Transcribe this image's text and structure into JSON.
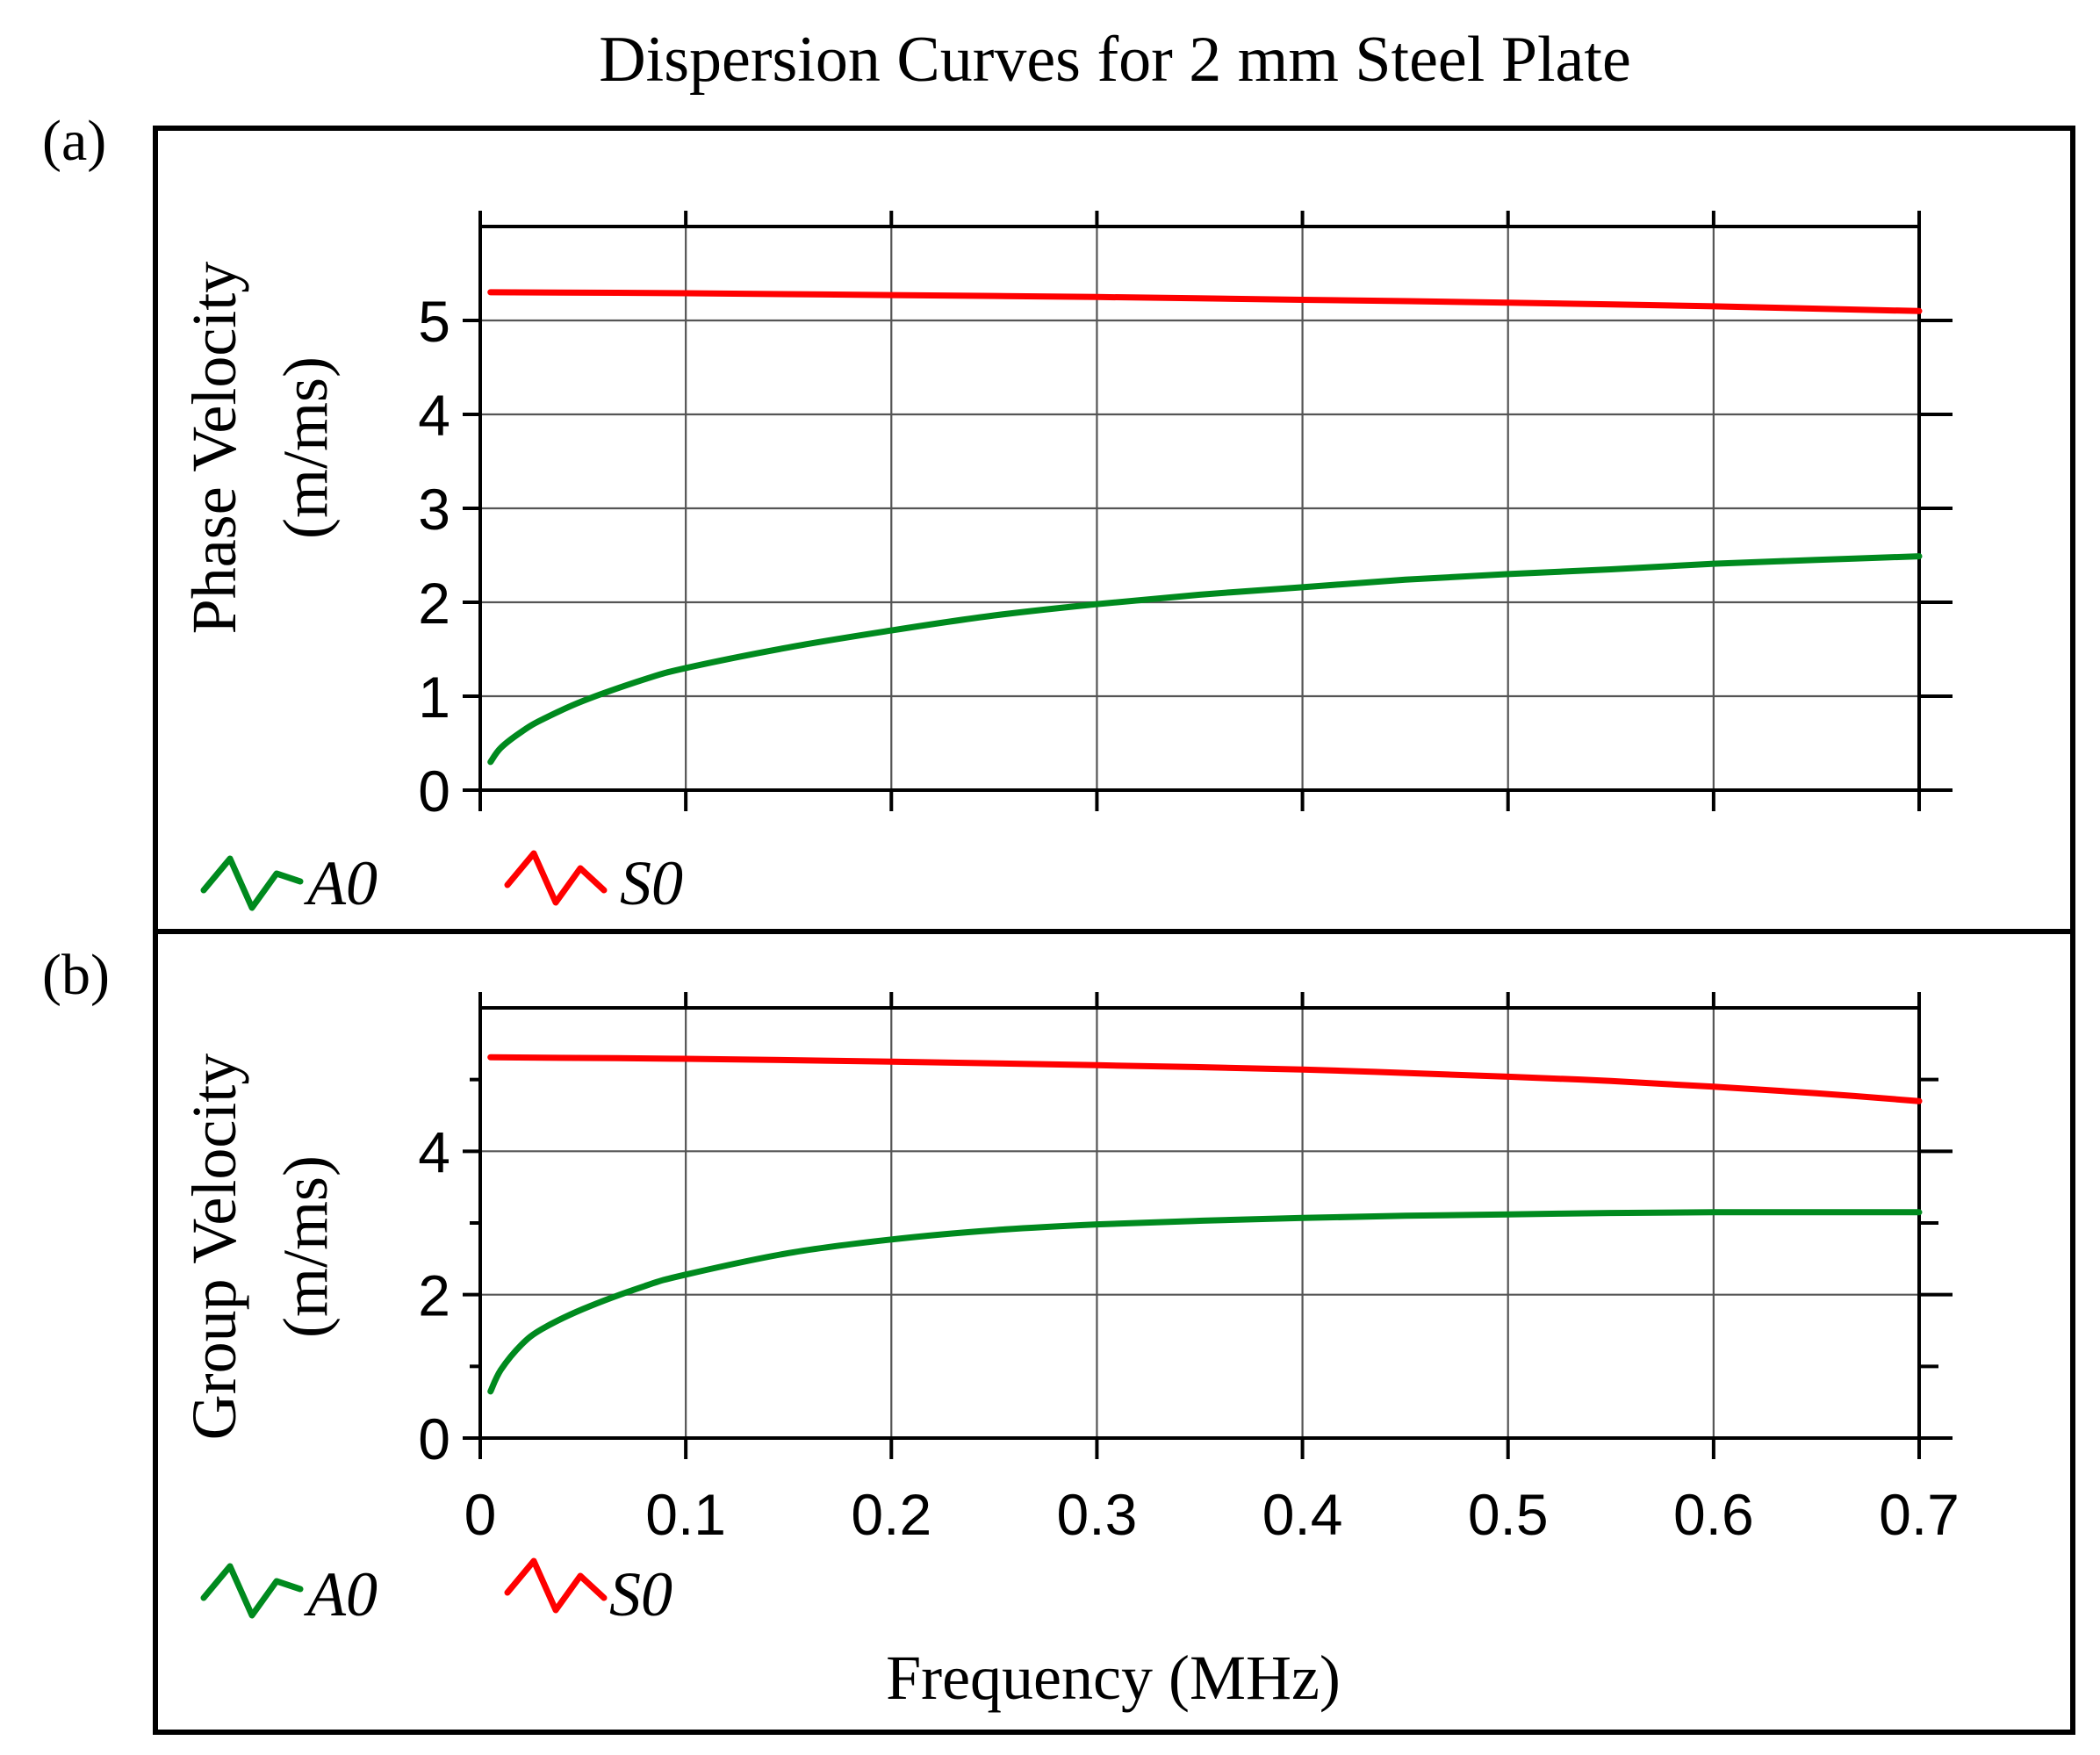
{
  "chart_data": {
    "title": "Dispersion Curves for 2 mm Steel Plate",
    "xlabel": "Frequency (MHz)",
    "panels": [
      {
        "label": "(a)",
        "type": "line",
        "ylabel_line1": "Phase Velocity",
        "ylabel_line2": "(m/ms)",
        "xlim": [
          0,
          0.7
        ],
        "ylim": [
          0,
          6
        ],
        "yticks": [
          0,
          1,
          2,
          3,
          4,
          5
        ],
        "ytick_labels": [
          "0",
          "1",
          "2",
          "3",
          "4",
          "5"
        ],
        "xticks": [
          0,
          0.1,
          0.2,
          0.3,
          0.4,
          0.5,
          0.6,
          0.7
        ],
        "xtick_labels_shown": false,
        "grid": true,
        "legend": [
          {
            "label": "A0",
            "color": "#008a1e"
          },
          {
            "label": "S0",
            "color": "#ff0000"
          }
        ],
        "series": [
          {
            "name": "A0",
            "color": "#008a1e",
            "x": [
              0.005,
              0.01,
              0.02,
              0.03,
              0.05,
              0.08,
              0.1,
              0.15,
              0.2,
              0.25,
              0.3,
              0.35,
              0.4,
              0.45,
              0.5,
              0.55,
              0.6,
              0.65,
              0.7
            ],
            "y": [
              0.3,
              0.45,
              0.62,
              0.75,
              0.95,
              1.18,
              1.3,
              1.52,
              1.7,
              1.86,
              1.98,
              2.08,
              2.16,
              2.24,
              2.3,
              2.35,
              2.41,
              2.45,
              2.49
            ]
          },
          {
            "name": "S0",
            "color": "#ff0000",
            "x": [
              0.005,
              0.1,
              0.2,
              0.3,
              0.4,
              0.5,
              0.6,
              0.7
            ],
            "y": [
              5.3,
              5.29,
              5.27,
              5.25,
              5.22,
              5.19,
              5.15,
              5.1
            ]
          }
        ]
      },
      {
        "label": "(b)",
        "type": "line",
        "ylabel_line1": "Group Velocity",
        "ylabel_line2": "(m/ms)",
        "xlim": [
          0,
          0.7
        ],
        "ylim": [
          0,
          6
        ],
        "yticks": [
          0,
          2,
          4
        ],
        "ytick_labels": [
          "0",
          "2",
          "4"
        ],
        "minor_yticks": [
          1,
          3,
          5
        ],
        "xticks": [
          0,
          0.1,
          0.2,
          0.3,
          0.4,
          0.5,
          0.6,
          0.7
        ],
        "xtick_labels": [
          "0",
          "0.1",
          "0.2",
          "0.3",
          "0.4",
          "0.5",
          "0.6",
          "0.7"
        ],
        "grid": true,
        "legend": [
          {
            "label": "A0",
            "color": "#008a1e"
          },
          {
            "label": "S0",
            "color": "#ff0000"
          }
        ],
        "series": [
          {
            "name": "A0",
            "color": "#008a1e",
            "x": [
              0.005,
              0.01,
              0.02,
              0.03,
              0.05,
              0.08,
              0.1,
              0.15,
              0.2,
              0.25,
              0.3,
              0.35,
              0.4,
              0.45,
              0.5,
              0.55,
              0.6,
              0.65,
              0.7
            ],
            "y": [
              0.65,
              0.95,
              1.3,
              1.52,
              1.8,
              2.12,
              2.28,
              2.58,
              2.77,
              2.9,
              2.98,
              3.03,
              3.07,
              3.1,
              3.12,
              3.14,
              3.15,
              3.15,
              3.15
            ]
          },
          {
            "name": "S0",
            "color": "#ff0000",
            "x": [
              0.005,
              0.1,
              0.2,
              0.3,
              0.4,
              0.5,
              0.55,
              0.6,
              0.65,
              0.7
            ],
            "y": [
              5.31,
              5.29,
              5.25,
              5.2,
              5.14,
              5.04,
              4.98,
              4.9,
              4.81,
              4.7
            ]
          }
        ]
      }
    ]
  }
}
